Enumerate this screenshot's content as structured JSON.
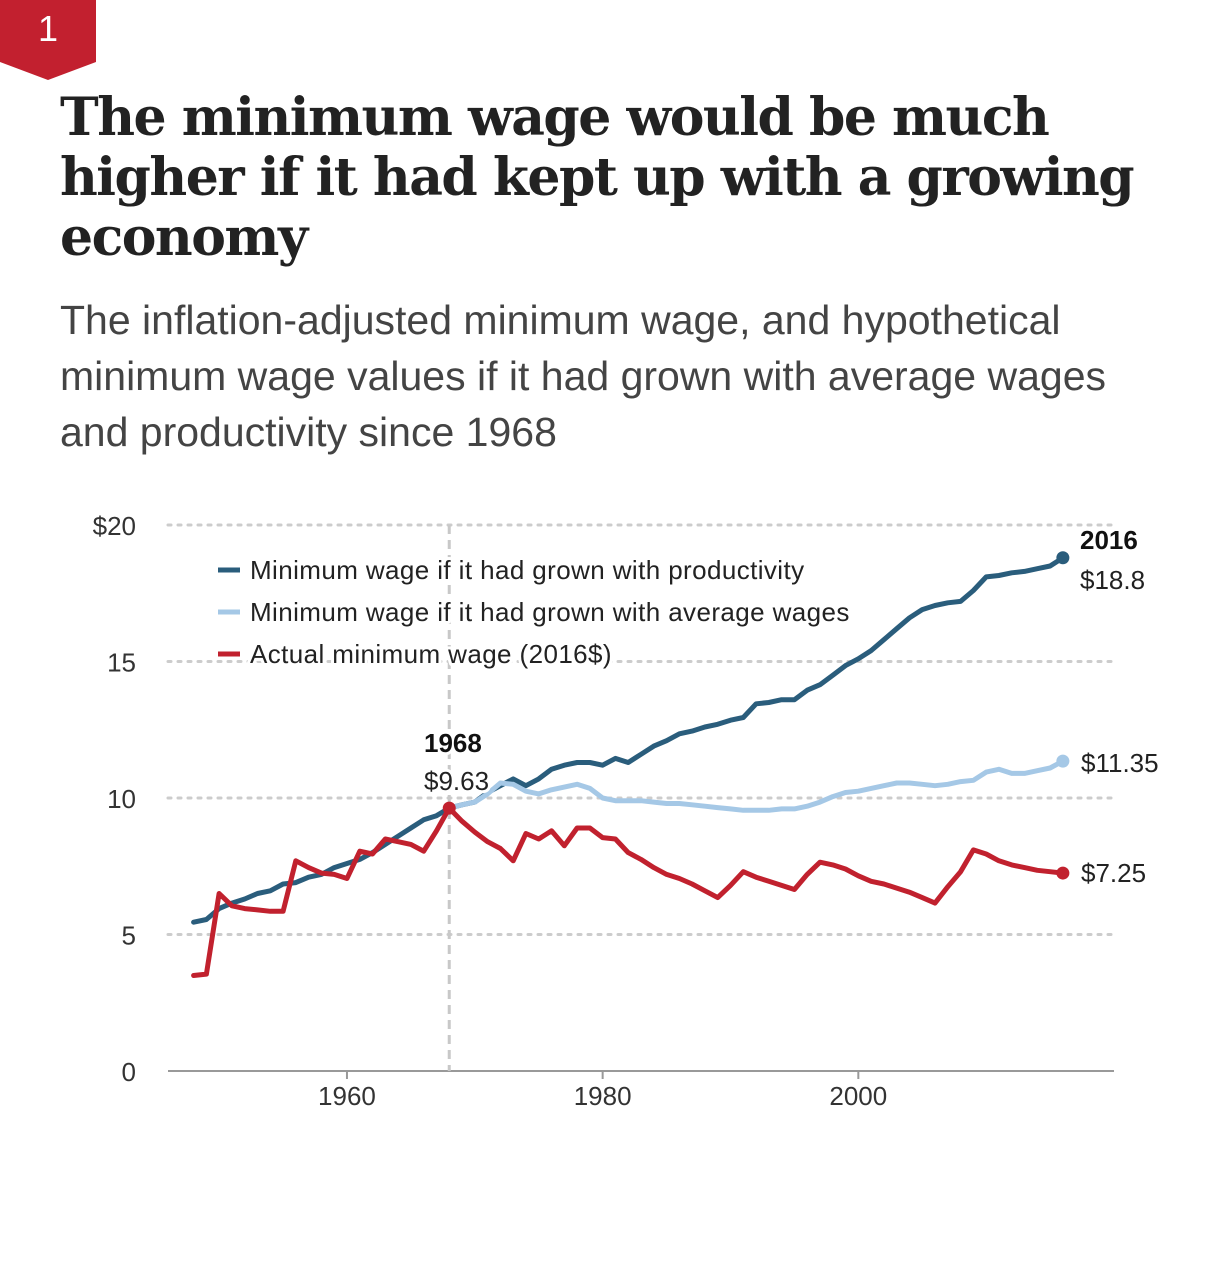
{
  "badge": {
    "number": "1",
    "color": "#c2202f"
  },
  "title": "The minimum wage would be much higher if it had kept up with a growing economy",
  "subtitle": "The inflation-adjusted minimum wage, and hypothetical minimum wage values if it had grown with average wages and productivity since 1968",
  "chart_data": {
    "type": "line",
    "title": "The minimum wage would be much higher if it had kept up with a growing economy",
    "xlabel": "",
    "ylabel": "",
    "xlim": [
      1946,
      2020
    ],
    "ylim": [
      0,
      20
    ],
    "x_ticks": [
      1960,
      1980,
      2000
    ],
    "y_ticks": [
      0,
      5,
      10,
      15,
      20
    ],
    "y_tick_labels": [
      "0",
      "5",
      "10",
      "15",
      "$20"
    ],
    "grid": "horizontal dotted",
    "legend_position": "top-left",
    "reference_line": {
      "x": 1968,
      "style": "dashed"
    },
    "annotations": {
      "1968": {
        "label": "1968",
        "value": "$9.63"
      },
      "2016": {
        "label": "2016",
        "productivity": "$18.8",
        "average_wages": "$11.35",
        "actual": "$7.25"
      }
    },
    "series": [
      {
        "name": "Minimum wage if it had grown with productivity",
        "color": "#2a5d7c",
        "x": [
          1948,
          1949,
          1950,
          1951,
          1952,
          1953,
          1954,
          1955,
          1956,
          1957,
          1958,
          1959,
          1960,
          1961,
          1962,
          1963,
          1964,
          1965,
          1966,
          1967,
          1968,
          1969,
          1970,
          1971,
          1972,
          1973,
          1974,
          1975,
          1976,
          1977,
          1978,
          1979,
          1980,
          1981,
          1982,
          1983,
          1984,
          1985,
          1986,
          1987,
          1988,
          1989,
          1990,
          1991,
          1992,
          1993,
          1994,
          1995,
          1996,
          1997,
          1998,
          1999,
          2000,
          2001,
          2002,
          2003,
          2004,
          2005,
          2006,
          2007,
          2008,
          2009,
          2010,
          2011,
          2012,
          2013,
          2014,
          2015,
          2016
        ],
        "values": [
          5.45,
          5.55,
          5.95,
          6.15,
          6.3,
          6.5,
          6.6,
          6.85,
          6.9,
          7.1,
          7.2,
          7.45,
          7.6,
          7.75,
          8.0,
          8.3,
          8.6,
          8.9,
          9.2,
          9.35,
          9.63,
          9.75,
          9.85,
          10.2,
          10.45,
          10.7,
          10.45,
          10.7,
          11.05,
          11.2,
          11.3,
          11.3,
          11.2,
          11.45,
          11.3,
          11.6,
          11.9,
          12.1,
          12.35,
          12.45,
          12.6,
          12.7,
          12.85,
          12.95,
          13.45,
          13.5,
          13.6,
          13.6,
          13.95,
          14.15,
          14.5,
          14.85,
          15.1,
          15.4,
          15.8,
          16.2,
          16.6,
          16.9,
          17.05,
          17.15,
          17.2,
          17.6,
          18.1,
          18.15,
          18.25,
          18.3,
          18.4,
          18.5,
          18.8
        ]
      },
      {
        "name": "Minimum wage if it had grown with average wages",
        "color": "#a5c8e6",
        "x": [
          1968,
          1969,
          1970,
          1971,
          1972,
          1973,
          1974,
          1975,
          1976,
          1977,
          1978,
          1979,
          1980,
          1981,
          1982,
          1983,
          1984,
          1985,
          1986,
          1987,
          1988,
          1989,
          1990,
          1991,
          1992,
          1993,
          1994,
          1995,
          1996,
          1997,
          1998,
          1999,
          2000,
          2001,
          2002,
          2003,
          2004,
          2005,
          2006,
          2007,
          2008,
          2009,
          2010,
          2011,
          2012,
          2013,
          2014,
          2015,
          2016
        ],
        "values": [
          9.63,
          9.75,
          9.85,
          10.15,
          10.55,
          10.5,
          10.25,
          10.15,
          10.3,
          10.4,
          10.5,
          10.35,
          10.0,
          9.9,
          9.9,
          9.9,
          9.85,
          9.8,
          9.8,
          9.75,
          9.7,
          9.65,
          9.6,
          9.55,
          9.55,
          9.55,
          9.6,
          9.6,
          9.7,
          9.85,
          10.05,
          10.2,
          10.25,
          10.35,
          10.45,
          10.55,
          10.55,
          10.5,
          10.45,
          10.5,
          10.6,
          10.65,
          10.95,
          11.05,
          10.9,
          10.9,
          11.0,
          11.1,
          11.35
        ]
      },
      {
        "name": "Actual minimum wage (2016$)",
        "color": "#c1212e",
        "x": [
          1948,
          1949,
          1950,
          1951,
          1952,
          1953,
          1954,
          1955,
          1956,
          1957,
          1958,
          1959,
          1960,
          1961,
          1962,
          1963,
          1964,
          1965,
          1966,
          1967,
          1968,
          1969,
          1970,
          1971,
          1972,
          1973,
          1974,
          1975,
          1976,
          1977,
          1978,
          1979,
          1980,
          1981,
          1982,
          1983,
          1984,
          1985,
          1986,
          1987,
          1988,
          1989,
          1990,
          1991,
          1992,
          1993,
          1994,
          1995,
          1996,
          1997,
          1998,
          1999,
          2000,
          2001,
          2002,
          2003,
          2004,
          2005,
          2006,
          2007,
          2008,
          2009,
          2010,
          2011,
          2012,
          2013,
          2014,
          2015,
          2016
        ],
        "values": [
          3.5,
          3.55,
          6.5,
          6.05,
          5.95,
          5.9,
          5.85,
          5.85,
          7.7,
          7.45,
          7.25,
          7.2,
          7.05,
          8.05,
          7.95,
          8.5,
          8.4,
          8.3,
          8.05,
          8.8,
          9.63,
          9.15,
          8.75,
          8.4,
          8.15,
          7.7,
          8.7,
          8.5,
          8.8,
          8.25,
          8.9,
          8.9,
          8.55,
          8.5,
          8.0,
          7.75,
          7.45,
          7.2,
          7.05,
          6.85,
          6.6,
          6.35,
          6.8,
          7.3,
          7.1,
          6.95,
          6.8,
          6.65,
          7.2,
          7.65,
          7.55,
          7.4,
          7.15,
          6.95,
          6.85,
          6.7,
          6.55,
          6.35,
          6.15,
          6.75,
          7.3,
          8.1,
          7.95,
          7.7,
          7.55,
          7.45,
          7.35,
          7.3,
          7.25
        ]
      }
    ]
  }
}
